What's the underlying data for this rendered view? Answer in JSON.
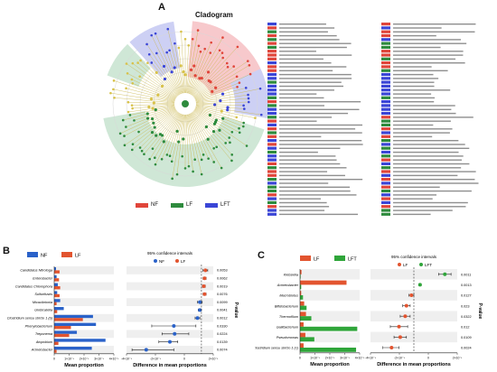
{
  "panels": {
    "a": "A",
    "b": "B",
    "c": "C"
  },
  "cladogram": {
    "title": "Cladogram",
    "legend": [
      {
        "label": "NF",
        "color": "#e0453a"
      },
      {
        "label": "LF",
        "color": "#2e8b3d"
      },
      {
        "label": "LFT",
        "color": "#3a45d6"
      }
    ],
    "sector_colors": {
      "NF": "#f7c9cc",
      "LF": "#cfe7d6",
      "LFT": "#cdd0f4"
    }
  },
  "chart_data": [
    {
      "type": "bar",
      "panel": "B",
      "groups": [
        {
          "name": "NF",
          "color": "#2a62c9"
        },
        {
          "name": "LF",
          "color": "#e2542f"
        }
      ],
      "categories": [
        "Candidatus Nitrotoga",
        "Enterobacter",
        "Candidatus Chlorophora",
        "Sulfurifustis",
        "Micavibrionia",
        "Globicatella",
        "Clostridium sensu stricto 1 (b)",
        "Phenylobacterium",
        "Treponema",
        "Atopobium",
        "Acinetobacter"
      ],
      "series": [
        {
          "name": "NF",
          "values": [
            0.3,
            0.4,
            0.6,
            0.5,
            1.0,
            1.6,
            6.5,
            7.0,
            3.8,
            8.6,
            6.3
          ]
        },
        {
          "name": "LF",
          "values": [
            0.9,
            0.8,
            1.0,
            0.9,
            0.4,
            0.5,
            4.8,
            2.8,
            2.5,
            0.7,
            0.4
          ]
        }
      ],
      "xlabel": "Mean proportion",
      "xticks": [
        "0",
        "1×10⁻¹",
        "2×10⁻¹",
        "3×10⁻¹",
        "4×10⁻¹"
      ],
      "ci_title": "95% confidence intervals",
      "ci_xlabel": "Difference in mean proportions",
      "ci_xticks": [
        "-4×10⁻¹",
        "-2×10⁻¹",
        "0",
        "2×10⁻¹"
      ],
      "ci": [
        {
          "diff": 0.05,
          "lo": 0.02,
          "hi": 0.08
        },
        {
          "diff": 0.04,
          "lo": 0.02,
          "hi": 0.06
        },
        {
          "diff": 0.03,
          "lo": 0.01,
          "hi": 0.05
        },
        {
          "diff": 0.04,
          "lo": 0.02,
          "hi": 0.06
        },
        {
          "diff": -0.02,
          "lo": -0.05,
          "hi": 0.01
        },
        {
          "diff": -0.02,
          "lo": -0.04,
          "hi": 0.0
        },
        {
          "diff": -0.05,
          "lo": -0.08,
          "hi": -0.02
        },
        {
          "diff": -0.35,
          "lo": -0.63,
          "hi": -0.07
        },
        {
          "diff": -0.34,
          "lo": -0.5,
          "hi": -0.16
        },
        {
          "diff": -0.4,
          "lo": -0.54,
          "hi": -0.3
        },
        {
          "diff": -0.7,
          "lo": -0.88,
          "hi": -0.35
        }
      ],
      "pvalues": [
        "0.0053",
        "0.0062",
        "0.0019",
        "0.0076",
        "0.0099",
        "0.0041",
        "0.0012",
        "0.0330",
        "0.0224",
        "0.0139",
        "0.0074"
      ],
      "pvalue_label": "P-value"
    },
    {
      "type": "bar",
      "panel": "C",
      "groups": [
        {
          "name": "LF",
          "color": "#e2542f"
        },
        {
          "name": "LFT",
          "color": "#2fa53a"
        }
      ],
      "categories": [
        "Klebsiella",
        "Acinetobacter",
        "Macrobiotus",
        "Bifidobacterium",
        "Thermofilum",
        "Gallibacterium",
        "Pseudomonas",
        "Clostridium sensu stricto 1 (c)"
      ],
      "series": [
        {
          "name": "LF",
          "values": [
            0.25,
            7.8,
            0.2,
            0.7,
            1.0,
            0.6,
            0.9,
            0.6
          ]
        },
        {
          "name": "LFT",
          "values": [
            0.1,
            0.2,
            0.5,
            1.1,
            1.9,
            9.6,
            2.4,
            9.4
          ]
        }
      ],
      "xlabel": "Mean proportion",
      "xticks": [
        "0",
        "1×10⁻¹",
        "2×10⁻¹",
        "3×10⁻¹",
        "4×10⁻¹"
      ],
      "ci_title": "95% confidence intervals",
      "ci_xlabel": "Difference in mean proportions",
      "ci_xticks": [
        "-4×10⁻¹",
        "-2×10⁻¹",
        "0",
        "2×10⁻¹"
      ],
      "ci": [
        {
          "diff": 0.25,
          "lo": 0.2,
          "hi": 0.3
        },
        {
          "diff": 0.05,
          "lo": 0.04,
          "hi": 0.06
        },
        {
          "diff": -0.02,
          "lo": -0.04,
          "hi": 0.0
        },
        {
          "diff": -0.06,
          "lo": -0.09,
          "hi": -0.03
        },
        {
          "diff": -0.07,
          "lo": -0.11,
          "hi": -0.03
        },
        {
          "diff": -0.12,
          "lo": -0.19,
          "hi": -0.05
        },
        {
          "diff": -0.11,
          "lo": -0.16,
          "hi": -0.06
        },
        {
          "diff": -0.18,
          "lo": -0.25,
          "hi": -0.12
        }
      ],
      "pvalues": [
        "0.0011",
        "0.0013",
        "0.0127",
        "0.023",
        "0.0322",
        "0.012",
        "0.0109",
        "0.0024"
      ],
      "pvalue_label": "P-value"
    }
  ]
}
